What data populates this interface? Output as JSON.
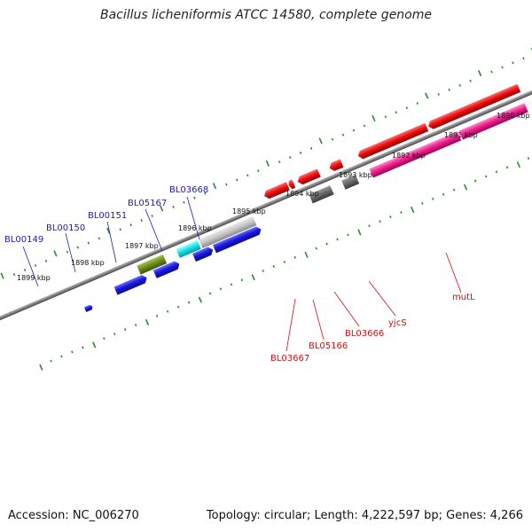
{
  "title": "Bacillus licheniformis ATCC 14580, complete genome",
  "footer": {
    "accession": "Accession: NC_006270",
    "summary": "Topology: circular; Length: 4,222,597 bp; Genes: 4,266"
  },
  "colors": {
    "backbone": "#808080",
    "ruler": "#2a8a2a",
    "forward_gene": "#1515e6",
    "reverse_gene": "#e61515",
    "forward_label": "#1c1cb0",
    "reverse_label": "#cc1111"
  },
  "ruler": {
    "unit": "kbp",
    "outer_labels": [
      "1890 kbp",
      "1891 kbp",
      "1892 kbp",
      "1893 kbp",
      "1894 kbp",
      "1895 kbp",
      "1896 kbp",
      "1897 kbp",
      "1898 kbp",
      "1899 kbp"
    ]
  },
  "gene_labels": {
    "forward": [
      "BL00149",
      "BL00150",
      "BL00151",
      "BL05167",
      "BL03668"
    ],
    "reverse": [
      "BL03667",
      "BL05166",
      "BL03666",
      "yjcS",
      "mutL"
    ]
  }
}
